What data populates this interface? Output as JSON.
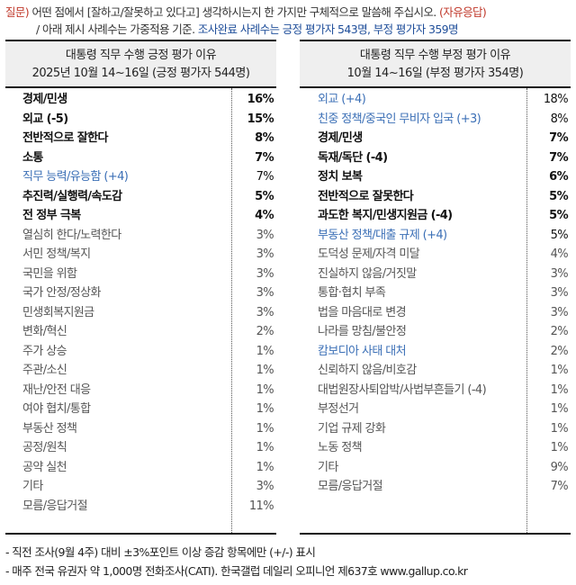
{
  "question": {
    "label": "질문)",
    "text": "어떤 점에서 [잘하고/잘못하고 있다고] 생각하시는지 한 가지만 구체적으로 말씀해 주십시오.",
    "type": "(자유응답)",
    "note": "/ 아래 제시 사례수는 가중적용 기준.",
    "sample_note": "조사완료 사례수는 긍정 평가자 543명, 부정 평가자 359명"
  },
  "colors": {
    "red": "#c0392b",
    "navy": "#1f4e9a",
    "blue_change": "#3b6fb6",
    "header_bg": "#efefef"
  },
  "positive": {
    "title": "대통령 직무 수행 긍정 평가 이유",
    "subtitle": "2025년 10월 14~16일 (긍정 평가자 544명)",
    "rows": [
      {
        "label": "경제/민생",
        "value": "16%",
        "style": "bold"
      },
      {
        "label": "외교 (-5)",
        "value": "15%",
        "style": "bold"
      },
      {
        "label": "전반적으로 잘한다",
        "value": "8%",
        "style": "bold"
      },
      {
        "label": "소통",
        "value": "7%",
        "style": "bold"
      },
      {
        "label": "직무 능력/유능함 (+4)",
        "value": "7%",
        "style": "blue"
      },
      {
        "label": "추진력/실행력/속도감",
        "value": "5%",
        "style": "bold"
      },
      {
        "label": "전 정부 극복",
        "value": "4%",
        "style": "bold"
      },
      {
        "label": "열심히 한다/노력한다",
        "value": "3%",
        "style": "gray"
      },
      {
        "label": "서민 정책/복지",
        "value": "3%",
        "style": "gray"
      },
      {
        "label": "국민을 위함",
        "value": "3%",
        "style": "gray"
      },
      {
        "label": "국가 안정/정상화",
        "value": "3%",
        "style": "gray"
      },
      {
        "label": "민생회복지원금",
        "value": "3%",
        "style": "gray"
      },
      {
        "label": "변화/혁신",
        "value": "2%",
        "style": "gray"
      },
      {
        "label": "주가 상승",
        "value": "1%",
        "style": "gray"
      },
      {
        "label": "주관/소신",
        "value": "1%",
        "style": "gray"
      },
      {
        "label": "재난/안전 대응",
        "value": "1%",
        "style": "gray"
      },
      {
        "label": "여야 협치/통합",
        "value": "1%",
        "style": "gray"
      },
      {
        "label": "부동산 정책",
        "value": "1%",
        "style": "gray"
      },
      {
        "label": "공정/원칙",
        "value": "1%",
        "style": "gray"
      },
      {
        "label": "공약 실천",
        "value": "1%",
        "style": "gray"
      },
      {
        "label": "기타",
        "value": "3%",
        "style": "gray"
      },
      {
        "label": "모름/응답거절",
        "value": "11%",
        "style": "gray"
      }
    ]
  },
  "negative": {
    "title": "대통령 직무 수행 부정 평가 이유",
    "subtitle": "10월 14~16일 (부정 평가자 354명)",
    "rows": [
      {
        "label": "외교 (+4)",
        "value": "18%",
        "style": "blue"
      },
      {
        "label": "친중 정책/중국인 무비자 입국 (+3)",
        "value": "8%",
        "style": "blue"
      },
      {
        "label": "경제/민생",
        "value": "7%",
        "style": "bold"
      },
      {
        "label": "독재/독단 (-4)",
        "value": "7%",
        "style": "bold"
      },
      {
        "label": "정치 보복",
        "value": "6%",
        "style": "bold"
      },
      {
        "label": "전반적으로 잘못한다",
        "value": "5%",
        "style": "bold"
      },
      {
        "label": "과도한 복지/민생지원금 (-4)",
        "value": "5%",
        "style": "bold"
      },
      {
        "label": "부동산 정책/대출 규제 (+4)",
        "value": "5%",
        "style": "blue"
      },
      {
        "label": "도덕성 문제/자격 미달",
        "value": "4%",
        "style": "gray"
      },
      {
        "label": "진실하지 않음/거짓말",
        "value": "3%",
        "style": "gray"
      },
      {
        "label": "통합·협치 부족",
        "value": "3%",
        "style": "gray"
      },
      {
        "label": "법을 마음대로 변경",
        "value": "3%",
        "style": "gray"
      },
      {
        "label": "나라를 망침/불안정",
        "value": "2%",
        "style": "gray"
      },
      {
        "label": "캄보디아 사태 대처",
        "value": "2%",
        "style": "blue dim"
      },
      {
        "label": "신뢰하지 않음/비호감",
        "value": "1%",
        "style": "gray"
      },
      {
        "label": "대법원장사퇴압박/사법부흔들기 (-4)",
        "value": "1%",
        "style": "gray"
      },
      {
        "label": "부정선거",
        "value": "1%",
        "style": "gray"
      },
      {
        "label": "기업 규제 강화",
        "value": "1%",
        "style": "gray"
      },
      {
        "label": "노동 정책",
        "value": "1%",
        "style": "gray"
      },
      {
        "label": "기타",
        "value": "9%",
        "style": "gray"
      },
      {
        "label": "모름/응답거절",
        "value": "7%",
        "style": "gray"
      }
    ]
  },
  "footer": {
    "line1": "- 직전 조사(9월 4주) 대비 ±3%포인트 이상 증감 항목에만 (+/-) 표시",
    "line2": "- 매주 전국 유권자 약 1,000명 전화조사(CATI). 한국갤럽 데일리 오피니언 제637호 www.gallup.co.kr"
  }
}
